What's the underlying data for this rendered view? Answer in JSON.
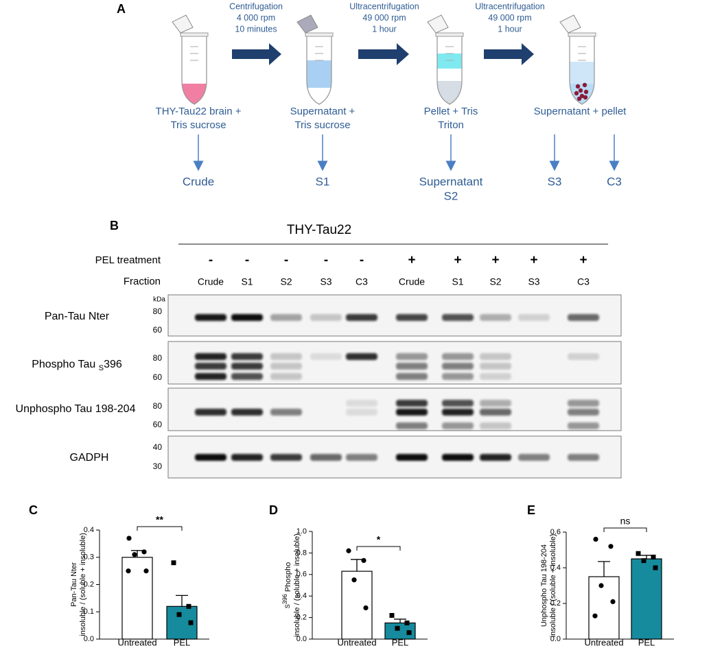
{
  "figure": {
    "panel_a": {
      "label": "A",
      "steps": [
        [
          "Centrifugation",
          "4 000 rpm",
          "10 minutes"
        ],
        [
          "Ultracentrifugation",
          "49 000 rpm",
          "1 hour"
        ],
        [
          "Ultracentrifugation",
          "49 000 rpm",
          "1 hour"
        ]
      ],
      "tubes": [
        [
          "THY-Tau22 brain +",
          "Tris sucrose"
        ],
        [
          "Supernatant +",
          "Tris sucrose"
        ],
        [
          "Pellet + Tris",
          "Triton"
        ],
        [
          "Supernatant  + pellet"
        ]
      ],
      "outputs": [
        [
          "Crude"
        ],
        [
          "S1"
        ],
        [
          "Supernatant",
          "S2"
        ],
        [
          "S3"
        ],
        [
          "C3"
        ]
      ]
    },
    "panel_b": {
      "label": "B",
      "header": "THY-Tau22",
      "treatment_label": "PEL treatment",
      "fraction_label": "Fraction",
      "treatments": [
        "-",
        "-",
        "-",
        "-",
        "-",
        "+",
        "+",
        "+",
        "+",
        "+"
      ],
      "fractions": [
        "Crude",
        "S1",
        "S2",
        "S3",
        "C3",
        "Crude",
        "S1",
        "S2",
        "S3",
        "C3"
      ],
      "kda": "kDa",
      "blots": [
        {
          "name": [
            "Pan-Tau Nter"
          ],
          "markers": [
            "80",
            "60"
          ]
        },
        {
          "name": [
            "Phospho Tau ",
            "S",
            "396"
          ],
          "markers": [
            "80",
            "60"
          ]
        },
        {
          "name": [
            "Unphospho Tau 198-204"
          ],
          "markers": [
            "80",
            "60"
          ]
        },
        {
          "name": [
            "GADPH"
          ],
          "markers": [
            "40",
            "30"
          ]
        }
      ]
    }
  },
  "chart_data": [
    {
      "type": "bar",
      "label": "C",
      "ylabel": [
        "Pan-Tau Nter",
        "insoluble / (soluble + insoluble)"
      ],
      "categories": [
        "Untreated",
        "PEL"
      ],
      "values": [
        0.3,
        0.12
      ],
      "errors": [
        0.025,
        0.04
      ],
      "points": [
        [
          0.37,
          0.32,
          0.31,
          0.25,
          0.25
        ],
        [
          0.28,
          0.12,
          0.09,
          0.06
        ]
      ],
      "colors": [
        "#ffffff",
        "#168b9e"
      ],
      "significance": "**",
      "ylim": [
        0,
        0.4
      ],
      "yticks": [
        {
          "value": 0,
          "label": "0.0"
        },
        0.1,
        0.2,
        0.3,
        0.4
      ]
    },
    {
      "type": "bar",
      "label": "D",
      "ylabel": [
        [
          "S",
          "396",
          " Phospho"
        ],
        "insoluble / (soluble + insoluble)"
      ],
      "categories": [
        "Untreated",
        "PEL"
      ],
      "values": [
        0.63,
        0.15
      ],
      "errors": [
        0.11,
        0.035
      ],
      "points": [
        [
          0.82,
          0.73,
          0.55,
          0.29
        ],
        [
          0.22,
          0.15,
          0.1,
          0.06
        ]
      ],
      "colors": [
        "#ffffff",
        "#168b9e"
      ],
      "significance": "*",
      "ylim": [
        0,
        1.0
      ],
      "yticks": [
        {
          "value": 0,
          "label": "0.0"
        },
        0.2,
        0.4,
        0.6,
        0.8,
        {
          "value": 1,
          "label": "1.0"
        }
      ]
    },
    {
      "type": "bar",
      "label": "E",
      "ylabel": [
        "Unphospho Tau 198-204",
        "insoluble / (soluble + insoluble)"
      ],
      "categories": [
        "Untreated",
        "PEL"
      ],
      "values": [
        0.35,
        0.45
      ],
      "errors": [
        0.085,
        0.02
      ],
      "points": [
        [
          0.56,
          0.52,
          0.3,
          0.21,
          0.13
        ],
        [
          0.48,
          0.46,
          0.44,
          0.4
        ]
      ],
      "colors": [
        "#ffffff",
        "#168b9e"
      ],
      "significance": "ns",
      "ylim": [
        0,
        0.6
      ],
      "yticks": [
        {
          "value": 0,
          "label": "0.0"
        },
        0.2,
        0.4,
        0.6
      ]
    }
  ]
}
